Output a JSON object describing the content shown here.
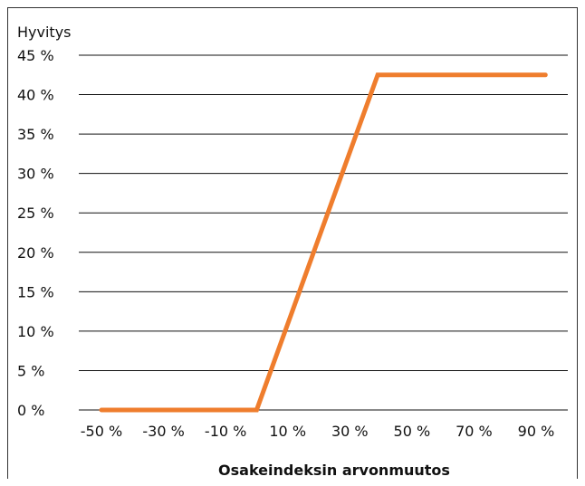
{
  "chart_data": {
    "type": "line",
    "ylabel": "Hyvitys",
    "xlabel": "Osakeindeksin arvonmuutos",
    "x_ticks": [
      "-50 %",
      "-30 %",
      "-10 %",
      "10 %",
      "30 %",
      "50 %",
      "70 %",
      "90 %"
    ],
    "x_tick_values": [
      -50,
      -30,
      -10,
      10,
      30,
      50,
      70,
      90
    ],
    "y_ticks": [
      "0 %",
      "5 %",
      "10 %",
      "15 %",
      "20 %",
      "25 %",
      "30 %",
      "35 %",
      "40 %",
      "45 %"
    ],
    "y_tick_values": [
      0,
      5,
      10,
      15,
      20,
      25,
      30,
      35,
      40,
      45
    ],
    "xlim": [
      -50,
      90
    ],
    "ylim": [
      0,
      45
    ],
    "grid": "horizontal",
    "series": [
      {
        "x": [
          -50,
          0,
          39,
          93
        ],
        "y": [
          0,
          0,
          42.5,
          42.5
        ]
      }
    ],
    "colors": {
      "line": "#ef7d2d",
      "grid": "#111111"
    }
  }
}
